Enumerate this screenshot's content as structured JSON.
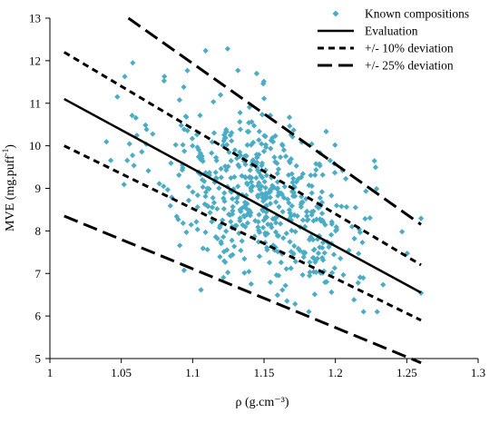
{
  "chart_data": {
    "type": "scatter",
    "xlabel": "ρ (g.cm⁻³)",
    "ylabel_main": "MVE (mg.puff",
    "ylabel_sup": "-1",
    "ylabel_tail": ")",
    "xlim": [
      1.0,
      1.3
    ],
    "ylim": [
      5,
      13
    ],
    "xticks": [
      "1",
      "1.05",
      "1.1",
      "1.15",
      "1.2",
      "1.25",
      "1.3"
    ],
    "yticks": [
      "5",
      "6",
      "7",
      "8",
      "9",
      "10",
      "11",
      "12",
      "13"
    ],
    "grid": false,
    "legend_position": "top-right",
    "colors": {
      "points": "#4bacc6",
      "lines": "#000000"
    },
    "series": [
      {
        "name": "Known compositions",
        "kind": "points",
        "cluster": {
          "center_x": 1.15,
          "center_y": 8.8,
          "count": 560
        }
      },
      {
        "name": "Evaluation",
        "kind": "line",
        "style": "solid",
        "x": [
          1.01,
          1.26
        ],
        "y": [
          11.1,
          6.55
        ]
      },
      {
        "name": "+/- 10% deviation",
        "kind": "line",
        "style": "short-dash",
        "upper": {
          "x": [
            1.01,
            1.26
          ],
          "y": [
            12.2,
            7.2
          ]
        },
        "lower": {
          "x": [
            1.01,
            1.26
          ],
          "y": [
            10.0,
            5.9
          ]
        }
      },
      {
        "name": "+/- 25% deviation",
        "kind": "line",
        "style": "long-dash",
        "upper": {
          "x": [
            1.055,
            1.26
          ],
          "y": [
            13.0,
            8.15
          ]
        },
        "lower": {
          "x": [
            1.01,
            1.26
          ],
          "y": [
            8.35,
            4.9
          ]
        }
      }
    ]
  }
}
